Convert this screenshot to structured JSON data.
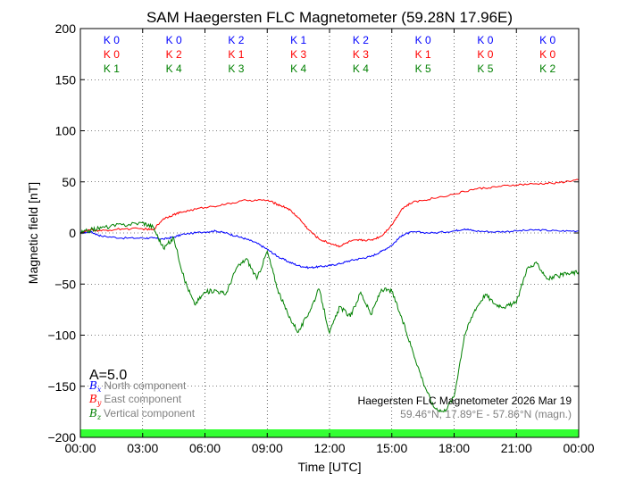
{
  "chart_data": {
    "type": "line",
    "title": "SAM Haegersten FLC Magnetometer (59.28N 17.96E)",
    "xlabel": "Time [UTC]",
    "ylabel": "Magnetic field [nT]",
    "xlim": [
      0,
      24
    ],
    "ylim": [
      -200,
      200
    ],
    "x_ticks": [
      0,
      3,
      6,
      9,
      12,
      15,
      18,
      21,
      24
    ],
    "x_tick_labels": [
      "00:00",
      "03:00",
      "06:00",
      "09:00",
      "12:00",
      "15:00",
      "18:00",
      "21:00",
      "00:00"
    ],
    "y_ticks": [
      -200,
      -150,
      -100,
      -50,
      0,
      50,
      100,
      150,
      200
    ],
    "y_tick_labels": [
      "−200",
      "−150",
      "−100",
      "−50",
      "0",
      "50",
      "100",
      "150",
      "200"
    ],
    "grid": true,
    "colors": {
      "north": "#0000ff",
      "east": "#ff0000",
      "vertical": "#008000",
      "quiet_bar": "#33ff33"
    },
    "k_index_rows": [
      {
        "color": "#0000ff",
        "labels": [
          "K 0",
          "K 0",
          "K 2",
          "K 1",
          "K 2",
          "K 0",
          "K 0",
          "K 0"
        ]
      },
      {
        "color": "#ff0000",
        "labels": [
          "K 0",
          "K 2",
          "K 1",
          "K 3",
          "K 3",
          "K 1",
          "K 0",
          "K 0"
        ]
      },
      {
        "color": "#008000",
        "labels": [
          "K 1",
          "K 4",
          "K 3",
          "K 4",
          "K 4",
          "K 5",
          "K 5",
          "K 2"
        ]
      }
    ],
    "a_index": "A=5.0",
    "legend": [
      {
        "symbol": "B",
        "sub": "x",
        "text": "North component",
        "color": "#0000ff"
      },
      {
        "symbol": "B",
        "sub": "y",
        "text": "East component",
        "color": "#ff0000"
      },
      {
        "symbol": "B",
        "sub": "z",
        "text": "Vertical component",
        "color": "#008000"
      }
    ],
    "footer_line1": "Haegersten FLC Magnetometer 2026 Mar 19",
    "footer_line2": "59.46°N, 17.89°E - 57.86°N (magn.)",
    "series": [
      {
        "name": "North component",
        "color": "#0000ff",
        "x": [
          0,
          0.5,
          1,
          2,
          3,
          3.5,
          4,
          4.5,
          5,
          6,
          6.5,
          7,
          7.5,
          8,
          8.5,
          9,
          9.5,
          10,
          10.5,
          11,
          11.5,
          12,
          12.5,
          13,
          13.5,
          14,
          14.5,
          15,
          15.5,
          16,
          17,
          18,
          18.5,
          19,
          20,
          21,
          22,
          23,
          24
        ],
        "y": [
          0,
          1,
          -3,
          -5,
          -5,
          -5,
          -6,
          -4,
          -1,
          1,
          2,
          0,
          -3,
          -6,
          -10,
          -16,
          -23,
          -28,
          -32,
          -34,
          -33,
          -32,
          -30,
          -27,
          -25,
          -23,
          -18,
          -12,
          -2,
          1,
          0,
          2,
          4,
          2,
          1,
          2,
          3,
          2,
          2
        ]
      },
      {
        "name": "East component",
        "color": "#ff0000",
        "x": [
          0,
          0.5,
          1,
          2,
          3,
          3.5,
          4,
          4.5,
          5,
          6,
          7,
          8,
          9,
          9.5,
          10,
          10.5,
          11,
          11.5,
          12,
          12.5,
          13,
          13.5,
          14,
          14.5,
          15,
          15.5,
          16,
          17,
          18,
          19,
          20,
          21,
          22,
          23,
          24
        ],
        "y": [
          0,
          3,
          2,
          4,
          4,
          3,
          14,
          18,
          21,
          25,
          28,
          32,
          32,
          28,
          24,
          15,
          3,
          -6,
          -10,
          -13,
          -8,
          -7,
          -7,
          -3,
          8,
          24,
          30,
          34,
          38,
          43,
          45,
          47,
          48,
          49,
          52
        ]
      },
      {
        "name": "Vertical component",
        "color": "#008000",
        "x": [
          0,
          0.5,
          1,
          2,
          3,
          3.5,
          4,
          4.5,
          5,
          5.5,
          6,
          6.5,
          7,
          7.5,
          8,
          8.5,
          9,
          9.5,
          10,
          10.5,
          11,
          11.5,
          12,
          12.5,
          13,
          13.5,
          14,
          14.5,
          15,
          15.5,
          16,
          16.5,
          17,
          17.5,
          18,
          18.5,
          19,
          19.5,
          20,
          20.5,
          21,
          21.5,
          22,
          22.5,
          23,
          23.5,
          24
        ],
        "y": [
          0,
          3,
          5,
          8,
          10,
          6,
          -15,
          -5,
          -45,
          -70,
          -58,
          -56,
          -60,
          -35,
          -25,
          -45,
          -18,
          -55,
          -80,
          -97,
          -78,
          -55,
          -98,
          -72,
          -82,
          -58,
          -80,
          -55,
          -57,
          -85,
          -115,
          -145,
          -170,
          -175,
          -160,
          -100,
          -75,
          -60,
          -70,
          -72,
          -68,
          -35,
          -30,
          -45,
          -42,
          -40,
          -38
        ]
      }
    ]
  }
}
